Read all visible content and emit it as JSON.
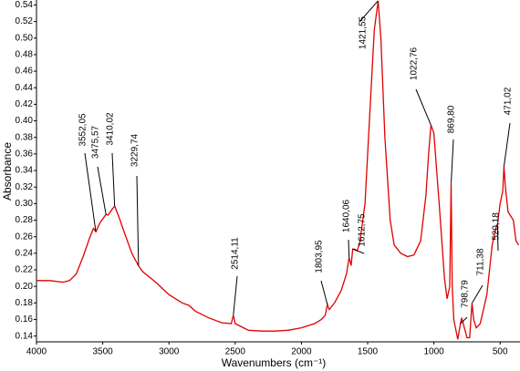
{
  "chart_data": {
    "type": "line",
    "xlabel": "Wavenumbers (cm⁻¹)",
    "ylabel": "Absorbance",
    "xlim": [
      4000,
      350
    ],
    "ylim": [
      0.133,
      0.546
    ],
    "xticks": [
      4000,
      3500,
      3000,
      2500,
      2000,
      1500,
      1000,
      500
    ],
    "yticks": [
      0.14,
      0.16,
      0.18,
      {
        "value": 0.2,
        "label": "0.20"
      },
      0.22,
      0.24,
      0.26,
      0.28,
      {
        "value": 0.3,
        "label": "0.30"
      },
      0.32,
      0.34,
      0.36,
      0.38,
      {
        "value": 0.4,
        "label": "0.40"
      },
      0.42,
      0.44,
      0.46,
      0.48,
      {
        "value": 0.5,
        "label": "0.50"
      },
      0.52,
      0.54
    ],
    "color": "#e00000",
    "x": [
      4000,
      3900,
      3800,
      3750,
      3700,
      3650,
      3600,
      3570,
      3552,
      3520,
      3475,
      3460,
      3430,
      3410,
      3380,
      3330,
      3280,
      3230,
      3200,
      3100,
      3000,
      2950,
      2900,
      2850,
      2800,
      2700,
      2600,
      2530,
      2514,
      2500,
      2400,
      2300,
      2200,
      2100,
      2000,
      1900,
      1850,
      1820,
      1804,
      1790,
      1750,
      1700,
      1660,
      1640,
      1625,
      1613,
      1600,
      1580,
      1560,
      1520,
      1480,
      1450,
      1421,
      1400,
      1370,
      1330,
      1300,
      1250,
      1200,
      1150,
      1100,
      1060,
      1040,
      1022,
      1000,
      960,
      920,
      900,
      880,
      870,
      862,
      850,
      820,
      800,
      790,
      770,
      750,
      730,
      712,
      700,
      680,
      650,
      600,
      560,
      530,
      520,
      500,
      480,
      471,
      460,
      440,
      420,
      400,
      380,
      360
    ],
    "values": [
      0.207,
      0.207,
      0.205,
      0.207,
      0.215,
      0.235,
      0.258,
      0.27,
      0.266,
      0.277,
      0.287,
      0.286,
      0.293,
      0.297,
      0.285,
      0.262,
      0.24,
      0.225,
      0.218,
      0.205,
      0.19,
      0.185,
      0.18,
      0.177,
      0.17,
      0.162,
      0.156,
      0.155,
      0.165,
      0.155,
      0.147,
      0.146,
      0.146,
      0.147,
      0.15,
      0.155,
      0.16,
      0.165,
      0.178,
      0.172,
      0.18,
      0.195,
      0.215,
      0.235,
      0.225,
      0.245,
      0.245,
      0.243,
      0.252,
      0.3,
      0.42,
      0.51,
      0.545,
      0.5,
      0.38,
      0.28,
      0.25,
      0.24,
      0.236,
      0.238,
      0.255,
      0.31,
      0.36,
      0.395,
      0.385,
      0.3,
      0.21,
      0.185,
      0.2,
      0.325,
      0.2,
      0.16,
      0.136,
      0.155,
      0.162,
      0.15,
      0.138,
      0.138,
      0.18,
      0.16,
      0.15,
      0.155,
      0.19,
      0.25,
      0.272,
      0.275,
      0.3,
      0.315,
      0.345,
      0.32,
      0.29,
      0.285,
      0.28,
      0.255,
      0.25
    ],
    "annotations": [
      {
        "text": "3552,05",
        "x": 3552.05,
        "y": 0.266
      },
      {
        "text": "3475,57",
        "x": 3475.57,
        "y": 0.287
      },
      {
        "text": "3410,02",
        "x": 3410.02,
        "y": 0.297
      },
      {
        "text": "3229,74",
        "x": 3229.74,
        "y": 0.225
      },
      {
        "text": "2514,11",
        "x": 2514.11,
        "y": 0.165
      },
      {
        "text": "1803,95",
        "x": 1803.95,
        "y": 0.178
      },
      {
        "text": "1640,06",
        "x": 1640.06,
        "y": 0.235
      },
      {
        "text": "1612,75",
        "x": 1612.75,
        "y": 0.245
      },
      {
        "text": "1421,55",
        "x": 1421.55,
        "y": 0.545
      },
      {
        "text": "1022,76",
        "x": 1022.76,
        "y": 0.395
      },
      {
        "text": "869,80",
        "x": 869.8,
        "y": 0.325
      },
      {
        "text": "798,79",
        "x": 798.79,
        "y": 0.155
      },
      {
        "text": "711,38",
        "x": 711.38,
        "y": 0.18
      },
      {
        "text": "520,18",
        "x": 520.18,
        "y": 0.275
      },
      {
        "text": "471,02",
        "x": 471.02,
        "y": 0.345
      }
    ]
  }
}
